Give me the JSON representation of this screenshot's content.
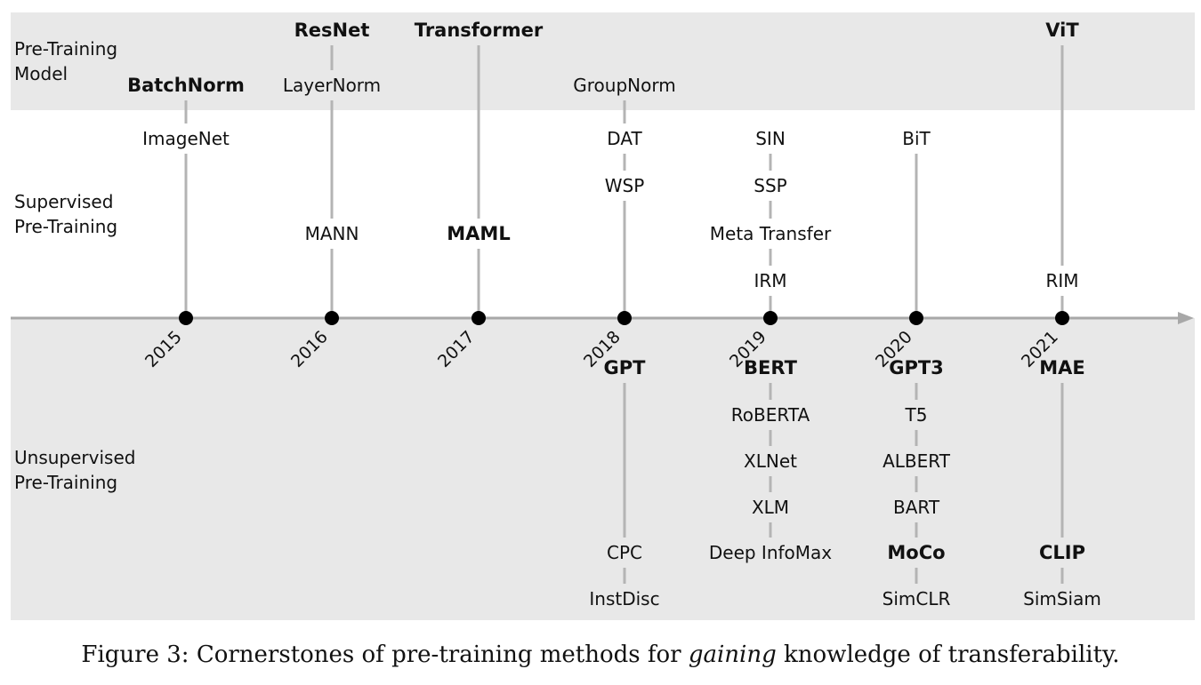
{
  "bands": {
    "pretraining_model": "Pre-Training\nModel",
    "supervised": "Supervised\nPre-Training",
    "unsupervised": "Unsupervised\nPre-Training"
  },
  "colors": {
    "band_pretraining": "#e8e8e8",
    "band_unsupervised": "#e8e8e8",
    "band_supervised": "#ffffff",
    "axis": "#a8a8a8",
    "stem": "#b4b4b4",
    "dot": "#000000",
    "text": "#111111"
  },
  "years": [
    "2015",
    "2016",
    "2017",
    "2018",
    "2019",
    "2020",
    "2021"
  ],
  "columns": [
    {
      "year": "2015",
      "above": [
        {
          "label": "BatchNorm",
          "bold": true
        },
        {
          "label": "ImageNet",
          "bold": false
        }
      ],
      "below": []
    },
    {
      "year": "2016",
      "above": [
        {
          "label": "ResNet",
          "bold": true
        },
        {
          "label": "LayerNorm",
          "bold": false
        },
        {
          "label": "MANN",
          "bold": false
        }
      ],
      "below": []
    },
    {
      "year": "2017",
      "above": [
        {
          "label": "Transformer",
          "bold": true
        },
        {
          "label": "MAML",
          "bold": true
        }
      ],
      "below": []
    },
    {
      "year": "2018",
      "above": [
        {
          "label": "GroupNorm",
          "bold": false
        },
        {
          "label": "DAT",
          "bold": false
        },
        {
          "label": "WSP",
          "bold": false
        }
      ],
      "below": [
        {
          "label": "GPT",
          "bold": true
        },
        {
          "label": "CPC",
          "bold": false
        },
        {
          "label": "InstDisc",
          "bold": false
        }
      ]
    },
    {
      "year": "2019",
      "above": [
        {
          "label": "SIN",
          "bold": false
        },
        {
          "label": "SSP",
          "bold": false
        },
        {
          "label": "Meta Transfer",
          "bold": false
        },
        {
          "label": "IRM",
          "bold": false
        }
      ],
      "below": [
        {
          "label": "BERT",
          "bold": true
        },
        {
          "label": "RoBERTA",
          "bold": false
        },
        {
          "label": "XLNet",
          "bold": false
        },
        {
          "label": "XLM",
          "bold": false
        },
        {
          "label": "Deep InfoMax",
          "bold": false
        }
      ]
    },
    {
      "year": "2020",
      "above": [
        {
          "label": "BiT",
          "bold": false
        }
      ],
      "below": [
        {
          "label": "GPT3",
          "bold": true
        },
        {
          "label": "T5",
          "bold": false
        },
        {
          "label": "ALBERT",
          "bold": false
        },
        {
          "label": "BART",
          "bold": false
        },
        {
          "label": "MoCo",
          "bold": true
        },
        {
          "label": "SimCLR",
          "bold": false
        }
      ]
    },
    {
      "year": "2021",
      "above": [
        {
          "label": "ViT",
          "bold": true
        },
        {
          "label": "RIM",
          "bold": false
        }
      ],
      "below": [
        {
          "label": "MAE",
          "bold": true
        },
        {
          "label": "CLIP",
          "bold": true
        },
        {
          "label": "SimSiam",
          "bold": false
        }
      ]
    }
  ],
  "caption": {
    "prefix": "Figure 3: Cornerstones of pre-training methods for ",
    "emphasis": "gaining",
    "suffix": " knowledge of transferability."
  }
}
